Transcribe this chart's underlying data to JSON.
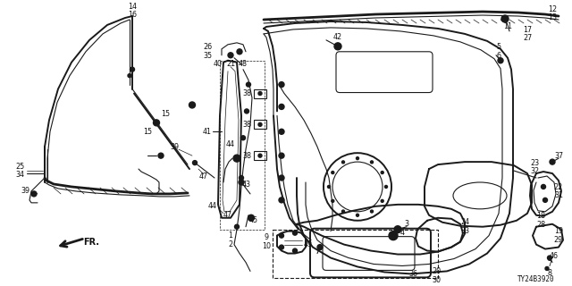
{
  "bg_color": "#ffffff",
  "line_color": "#1a1a1a",
  "text_color": "#111111",
  "fig_width": 6.4,
  "fig_height": 3.2,
  "dpi": 100,
  "diagram_code": "TY24B3920"
}
